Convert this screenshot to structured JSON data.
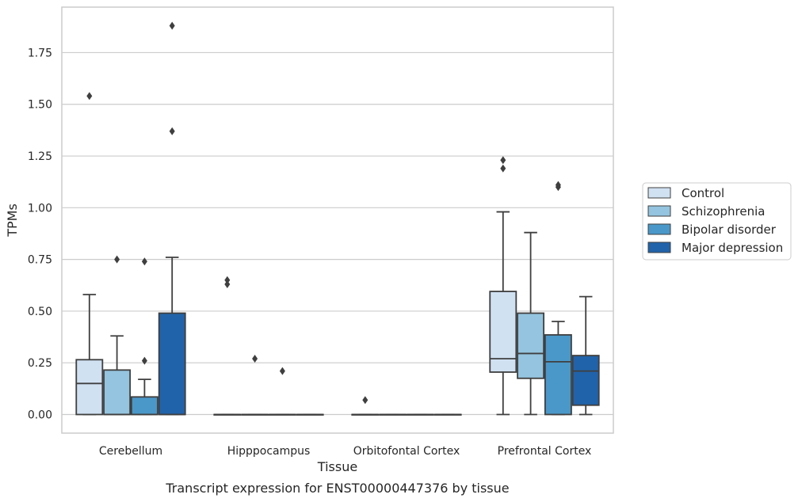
{
  "chart_data": {
    "type": "box",
    "caption": "Transcript expression for ENST00000447376 by tissue",
    "xlabel": "Tissue",
    "ylabel": "TPMs",
    "ylim": [
      -0.09,
      1.97
    ],
    "yticks": [
      0.0,
      0.25,
      0.5,
      0.75,
      1.0,
      1.25,
      1.5,
      1.75
    ],
    "ytick_labels": [
      "0.00",
      "0.25",
      "0.50",
      "0.75",
      "1.00",
      "1.25",
      "1.50",
      "1.75"
    ],
    "categories": [
      "Cerebellum",
      "Hipppocampus",
      "Orbitofontal Cortex",
      "Prefrontal Cortex"
    ],
    "grid": "horizontal",
    "legend_position": "right",
    "series": [
      {
        "name": "Control",
        "color": "#d0e1f2",
        "boxes": [
          {
            "whislo": 0.0,
            "q1": 0.0,
            "med": 0.15,
            "q3": 0.265,
            "whishi": 0.58,
            "fliers": [
              1.54
            ]
          },
          {
            "whislo": 0.0,
            "q1": 0.0,
            "med": 0.0,
            "q3": 0.0,
            "whishi": 0.0,
            "fliers": [
              0.63,
              0.65
            ]
          },
          {
            "whislo": 0.0,
            "q1": 0.0,
            "med": 0.0,
            "q3": 0.0,
            "whishi": 0.0,
            "fliers": [
              0.07
            ]
          },
          {
            "whislo": 0.0,
            "q1": 0.205,
            "med": 0.27,
            "q3": 0.595,
            "whishi": 0.98,
            "fliers": [
              1.19,
              1.23
            ]
          }
        ]
      },
      {
        "name": "Schizophrenia",
        "color": "#94c4df",
        "boxes": [
          {
            "whislo": 0.0,
            "q1": 0.0,
            "med": 0.0,
            "q3": 0.215,
            "whishi": 0.38,
            "fliers": [
              0.75
            ]
          },
          {
            "whislo": 0.0,
            "q1": 0.0,
            "med": 0.0,
            "q3": 0.0,
            "whishi": 0.0,
            "fliers": [
              0.27
            ]
          },
          {
            "whislo": 0.0,
            "q1": 0.0,
            "med": 0.0,
            "q3": 0.0,
            "whishi": 0.0,
            "fliers": []
          },
          {
            "whislo": 0.0,
            "q1": 0.175,
            "med": 0.295,
            "q3": 0.49,
            "whishi": 0.88,
            "fliers": []
          }
        ]
      },
      {
        "name": "Bipolar disorder",
        "color": "#4a98c9",
        "boxes": [
          {
            "whislo": 0.0,
            "q1": 0.0,
            "med": 0.0,
            "q3": 0.085,
            "whishi": 0.17,
            "fliers": [
              0.26,
              0.74
            ]
          },
          {
            "whislo": 0.0,
            "q1": 0.0,
            "med": 0.0,
            "q3": 0.0,
            "whishi": 0.0,
            "fliers": [
              0.21
            ]
          },
          {
            "whislo": 0.0,
            "q1": 0.0,
            "med": 0.0,
            "q3": 0.0,
            "whishi": 0.0,
            "fliers": []
          },
          {
            "whislo": 0.0,
            "q1": 0.0,
            "med": 0.255,
            "q3": 0.385,
            "whishi": 0.45,
            "fliers": [
              1.1,
              1.11
            ]
          }
        ]
      },
      {
        "name": "Major depression",
        "color": "#2163aa",
        "boxes": [
          {
            "whislo": 0.0,
            "q1": 0.0,
            "med": 0.0,
            "q3": 0.49,
            "whishi": 0.76,
            "fliers": [
              1.37,
              1.88
            ]
          },
          {
            "whislo": 0.0,
            "q1": 0.0,
            "med": 0.0,
            "q3": 0.0,
            "whishi": 0.0,
            "fliers": []
          },
          {
            "whislo": 0.0,
            "q1": 0.0,
            "med": 0.0,
            "q3": 0.0,
            "whishi": 0.0,
            "fliers": []
          },
          {
            "whislo": 0.0,
            "q1": 0.045,
            "med": 0.21,
            "q3": 0.285,
            "whishi": 0.57,
            "fliers": []
          }
        ]
      }
    ]
  }
}
